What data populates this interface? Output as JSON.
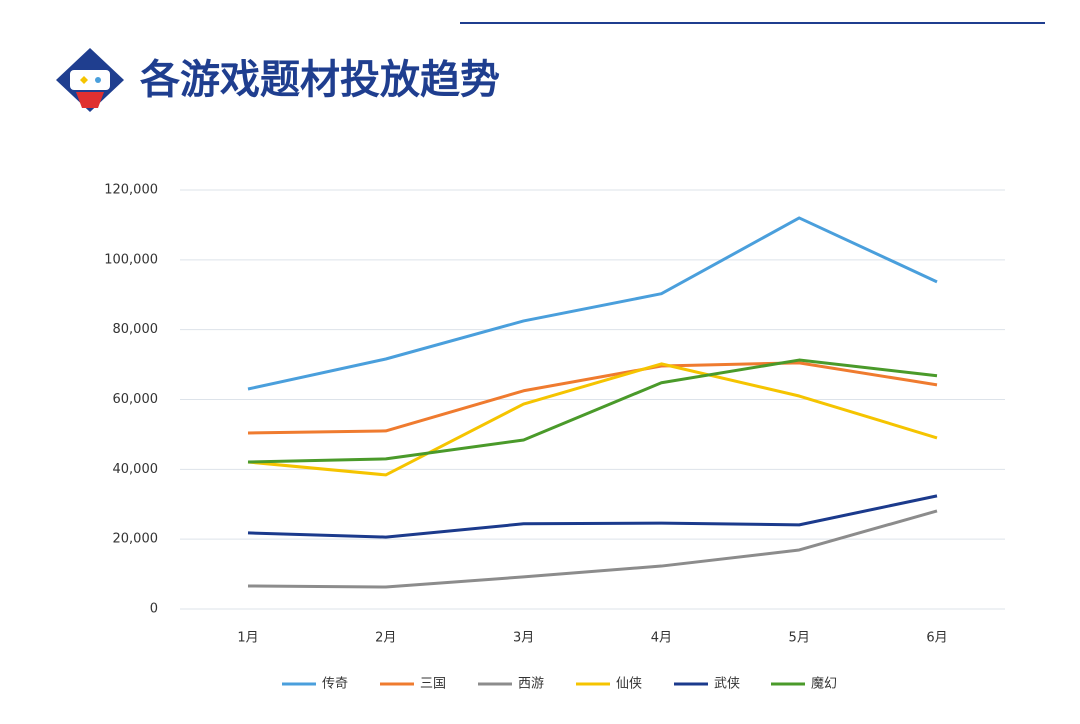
{
  "chart_data": {
    "type": "line",
    "title": "各游戏题材投放趋势",
    "categories": [
      "1月",
      "2月",
      "3月",
      "4月",
      "5月",
      "6月"
    ],
    "series": [
      {
        "name": "传奇",
        "color": "#4a9fdc",
        "values": [
          63000,
          71600,
          82500,
          90300,
          112000,
          93700
        ]
      },
      {
        "name": "三国",
        "color": "#ef7b2f",
        "values": [
          50400,
          51000,
          62500,
          69600,
          70500,
          64200
        ]
      },
      {
        "name": "西游",
        "color": "#8c8c8c",
        "values": [
          6600,
          6300,
          9200,
          12300,
          16900,
          28100
        ]
      },
      {
        "name": "仙侠",
        "color": "#f5c400",
        "values": [
          42100,
          38400,
          58700,
          70200,
          61000,
          49000
        ]
      },
      {
        "name": "武侠",
        "color": "#1b3a8c",
        "values": [
          21800,
          20600,
          24400,
          24600,
          24100,
          32400
        ]
      },
      {
        "name": "魔幻",
        "color": "#4a9a2a",
        "values": [
          42100,
          43000,
          48400,
          64800,
          71300,
          66800
        ]
      }
    ],
    "ylim": [
      0,
      120000
    ],
    "yticks": [
      0,
      {
        "value": 20000,
        "label": "20,000"
      },
      {
        "value": 40000,
        "label": "40,000"
      },
      {
        "value": 60000,
        "label": "60,000"
      },
      {
        "value": 80000,
        "label": "80,000"
      },
      {
        "value": 100000,
        "label": "100,000"
      },
      {
        "value": 120000,
        "label": "120,000"
      }
    ],
    "grid": true,
    "legend": "bottom"
  }
}
